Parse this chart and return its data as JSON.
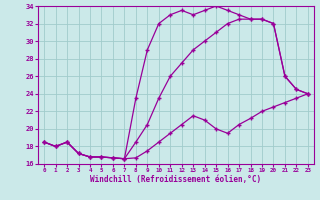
{
  "xlabel": "Windchill (Refroidissement éolien,°C)",
  "bg_color": "#cbe9e9",
  "grid_color": "#a0cccc",
  "line_color": "#990099",
  "xlim": [
    -0.5,
    23.5
  ],
  "ylim": [
    16,
    34
  ],
  "yticks": [
    16,
    18,
    20,
    22,
    24,
    26,
    28,
    30,
    32,
    34
  ],
  "xticks": [
    0,
    1,
    2,
    3,
    4,
    5,
    6,
    7,
    8,
    9,
    10,
    11,
    12,
    13,
    14,
    15,
    16,
    17,
    18,
    19,
    20,
    21,
    22,
    23
  ],
  "y_bottom": [
    18.5,
    18.0,
    18.5,
    17.2,
    16.8,
    16.8,
    16.7,
    16.6,
    16.7,
    17.5,
    18.5,
    19.5,
    20.5,
    21.5,
    21.0,
    20.0,
    19.5,
    20.5,
    21.2,
    22.0,
    22.5,
    23.0,
    23.5,
    24.0
  ],
  "y_mid": [
    18.5,
    18.0,
    18.5,
    17.2,
    16.8,
    16.8,
    16.7,
    16.6,
    18.5,
    20.5,
    23.5,
    26.0,
    27.5,
    29.0,
    30.0,
    31.0,
    32.0,
    32.5,
    32.5,
    32.5,
    32.0,
    26.0,
    24.5,
    24.0
  ],
  "y_top": [
    18.5,
    18.0,
    18.5,
    17.2,
    16.8,
    16.8,
    16.7,
    16.6,
    23.5,
    29.0,
    32.0,
    33.0,
    33.5,
    33.0,
    33.5,
    34.0,
    33.5,
    33.0,
    32.5,
    32.5,
    32.0,
    26.0,
    24.5,
    24.0
  ]
}
